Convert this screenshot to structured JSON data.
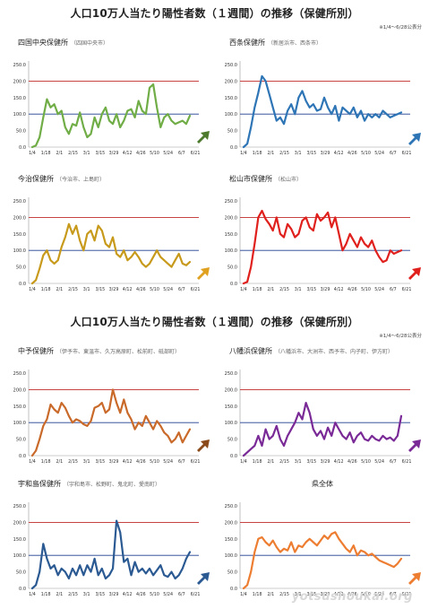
{
  "header1": {
    "title": "人口10万人当たり陽性者数（１週間）の推移（保健所別）",
    "note": "※1/4～6/28公表分"
  },
  "header2": {
    "title": "人口10万人当たり陽性者数（１週間）の推移（保健所別）",
    "note": "※1/4～6/28公表分"
  },
  "watermark": "yotsushoukai.org",
  "colors": {
    "red_line": "#c0282a",
    "blue_line": "#1f3f8f",
    "axis": "#999999"
  },
  "chart_data": [
    {
      "type": "line",
      "title": "四国中央保健所",
      "subtitle": "（四国中央市）",
      "color": "#70ad47",
      "arrow": "up",
      "arrow_color": "#4e7a2e",
      "x_ticks": [
        "1/4",
        "1/18",
        "2/1",
        "2/15",
        "3/1",
        "3/15",
        "3/29",
        "4/12",
        "4/26",
        "5/10",
        "5/24",
        "6/7",
        "6/21"
      ],
      "y_ticks": [
        0,
        50,
        100,
        150,
        200,
        250
      ],
      "ylim": [
        0,
        250
      ],
      "ref_lines": [
        {
          "y": 200,
          "color": "#c0282a"
        },
        {
          "y": 100,
          "color": "#1f3f8f"
        }
      ],
      "values": [
        0,
        5,
        30,
        90,
        145,
        120,
        130,
        100,
        110,
        60,
        40,
        70,
        65,
        105,
        60,
        30,
        40,
        90,
        60,
        100,
        120,
        80,
        70,
        100,
        60,
        80,
        110,
        115,
        90,
        140,
        110,
        100,
        180,
        190,
        120,
        60,
        90,
        100,
        80,
        70,
        75,
        80,
        70,
        95
      ]
    },
    {
      "type": "line",
      "title": "西条保健所",
      "subtitle": "（新居浜市、西条市）",
      "color": "#2e75b6",
      "arrow": "down",
      "arrow_color": "#2e75b6",
      "x_ticks": [
        "1/4",
        "1/18",
        "2/1",
        "2/15",
        "3/1",
        "3/15",
        "3/29",
        "4/12",
        "4/26",
        "5/10",
        "5/24",
        "6/7",
        "6/21"
      ],
      "y_ticks": [
        0,
        50,
        100,
        150,
        200,
        250
      ],
      "ylim": [
        0,
        250
      ],
      "ref_lines": [
        {
          "y": 200,
          "color": "#c0282a"
        },
        {
          "y": 100,
          "color": "#1f3f8f"
        }
      ],
      "values": [
        0,
        10,
        60,
        120,
        165,
        215,
        200,
        160,
        120,
        80,
        90,
        70,
        110,
        130,
        100,
        150,
        170,
        140,
        120,
        130,
        110,
        115,
        150,
        120,
        100,
        125,
        80,
        120,
        110,
        100,
        120,
        90,
        110,
        80,
        100,
        90,
        100,
        90,
        110,
        100,
        90,
        95,
        100,
        105
      ]
    },
    {
      "type": "line",
      "title": "今治保健所",
      "subtitle": "（今治市、上島町）",
      "color": "#c79a1c",
      "arrow": "up",
      "arrow_color": "#e0a020",
      "x_ticks": [
        "1/4",
        "1/18",
        "2/1",
        "2/15",
        "3/1",
        "3/15",
        "3/29",
        "4/12",
        "4/26",
        "5/10",
        "5/24",
        "6/7",
        "6/21"
      ],
      "y_ticks": [
        0,
        50,
        100,
        150,
        200,
        250
      ],
      "ylim": [
        0,
        250
      ],
      "ref_lines": [
        {
          "y": 200,
          "color": "#c0282a"
        },
        {
          "y": 100,
          "color": "#1f3f8f"
        }
      ],
      "values": [
        0,
        10,
        45,
        85,
        100,
        70,
        60,
        70,
        110,
        140,
        180,
        150,
        175,
        130,
        100,
        150,
        160,
        130,
        175,
        160,
        120,
        110,
        140,
        90,
        80,
        100,
        70,
        80,
        95,
        80,
        60,
        50,
        60,
        80,
        100,
        80,
        70,
        60,
        50,
        70,
        90,
        60,
        55,
        65
      ]
    },
    {
      "type": "line",
      "title": "松山市保健所",
      "subtitle": "（松山市）",
      "color": "#e0201c",
      "arrow": "up",
      "arrow_color": "#e0201c",
      "x_ticks": [
        "1/4",
        "1/18",
        "2/1",
        "2/15",
        "3/1",
        "3/15",
        "3/29",
        "4/12",
        "4/26",
        "5/10",
        "5/24",
        "6/7",
        "6/21"
      ],
      "y_ticks": [
        0,
        50,
        100,
        150,
        200,
        250
      ],
      "ylim": [
        0,
        250
      ],
      "ref_lines": [
        {
          "y": 200,
          "color": "#c0282a"
        },
        {
          "y": 100,
          "color": "#1f3f8f"
        }
      ],
      "values": [
        0,
        5,
        50,
        120,
        200,
        220,
        195,
        180,
        160,
        200,
        150,
        140,
        180,
        165,
        140,
        150,
        190,
        200,
        170,
        160,
        210,
        190,
        200,
        215,
        170,
        200,
        150,
        100,
        120,
        150,
        130,
        110,
        140,
        120,
        110,
        130,
        100,
        80,
        65,
        70,
        100,
        90,
        95,
        100
      ]
    },
    {
      "type": "line",
      "title": "中予保健所",
      "subtitle": "（伊予市、東温市、久万高原町、松前町、砥部町）",
      "color": "#c96a2a",
      "arrow": "up",
      "arrow_color": "#8a4a1a",
      "x_ticks": [
        "1/4",
        "1/18",
        "2/1",
        "2/15",
        "3/1",
        "3/15",
        "3/29",
        "4/12",
        "4/26",
        "5/10",
        "5/24",
        "6/7",
        "6/21"
      ],
      "y_ticks": [
        0,
        50,
        100,
        150,
        200,
        250
      ],
      "ylim": [
        0,
        250
      ],
      "ref_lines": [
        {
          "y": 200,
          "color": "#c0282a"
        },
        {
          "y": 100,
          "color": "#1f3f8f"
        }
      ],
      "values": [
        0,
        15,
        50,
        90,
        110,
        155,
        140,
        130,
        160,
        145,
        120,
        100,
        110,
        105,
        95,
        90,
        105,
        145,
        150,
        160,
        130,
        140,
        200,
        160,
        130,
        170,
        130,
        110,
        80,
        100,
        90,
        120,
        100,
        80,
        105,
        90,
        70,
        60,
        40,
        50,
        70,
        40,
        60,
        80
      ]
    },
    {
      "type": "line",
      "title": "八幡浜保健所",
      "subtitle": "（八幡浜市、大洲市、西予市、内子町、伊方町）",
      "color": "#7a2a96",
      "arrow": "up",
      "arrow_color": "#7a2a96",
      "x_ticks": [
        "1/4",
        "1/18",
        "2/1",
        "2/15",
        "3/1",
        "3/15",
        "3/29",
        "4/12",
        "4/26",
        "5/10",
        "5/24",
        "6/7",
        "6/21"
      ],
      "y_ticks": [
        0,
        50,
        100,
        150,
        200,
        250
      ],
      "ylim": [
        0,
        250
      ],
      "ref_lines": [
        {
          "y": 200,
          "color": "#c0282a"
        },
        {
          "y": 100,
          "color": "#1f3f8f"
        }
      ],
      "values": [
        0,
        10,
        20,
        30,
        60,
        30,
        80,
        50,
        60,
        90,
        50,
        30,
        60,
        80,
        100,
        130,
        110,
        160,
        130,
        80,
        60,
        75,
        50,
        85,
        60,
        100,
        80,
        60,
        50,
        70,
        40,
        60,
        70,
        50,
        45,
        60,
        50,
        45,
        60,
        50,
        55,
        45,
        60,
        120
      ]
    },
    {
      "type": "line",
      "title": "宇和島保健所",
      "subtitle": "（宇和島市、松野町、鬼北町、愛南町）",
      "color": "#2b5a93",
      "arrow": "up",
      "arrow_color": "#2b5a93",
      "x_ticks": [
        "1/4",
        "1/18",
        "2/1",
        "2/15",
        "3/1",
        "3/15",
        "3/29",
        "4/12",
        "4/26",
        "5/10",
        "5/24",
        "6/7",
        "6/21"
      ],
      "y_ticks": [
        0,
        50,
        100,
        150,
        200,
        250
      ],
      "ylim": [
        0,
        250
      ],
      "ref_lines": [
        {
          "y": 200,
          "color": "#c0282a"
        },
        {
          "y": 100,
          "color": "#1f3f8f"
        }
      ],
      "values": [
        0,
        10,
        50,
        135,
        90,
        60,
        70,
        40,
        60,
        50,
        30,
        60,
        40,
        70,
        40,
        70,
        50,
        90,
        40,
        60,
        30,
        40,
        60,
        205,
        170,
        80,
        90,
        40,
        80,
        50,
        60,
        45,
        60,
        40,
        55,
        70,
        40,
        35,
        50,
        30,
        40,
        60,
        90,
        110
      ]
    },
    {
      "type": "line",
      "title": "県全体",
      "subtitle": "",
      "color": "#ed7d31",
      "arrow": "up",
      "arrow_color": "#ed7d31",
      "x_ticks": [
        "1/4",
        "1/18",
        "2/1",
        "2/15",
        "3/1",
        "3/15",
        "3/29",
        "4/12",
        "4/26",
        "5/10",
        "5/24",
        "6/7",
        "6/21"
      ],
      "y_ticks": [
        0,
        50,
        100,
        150,
        200,
        250
      ],
      "ylim": [
        0,
        250
      ],
      "ref_lines": [
        {
          "y": 200,
          "color": "#c0282a"
        },
        {
          "y": 100,
          "color": "#1f3f8f"
        }
      ],
      "values": [
        0,
        10,
        50,
        110,
        150,
        155,
        140,
        130,
        145,
        125,
        110,
        120,
        115,
        140,
        110,
        130,
        125,
        140,
        150,
        140,
        130,
        145,
        160,
        150,
        165,
        170,
        150,
        135,
        120,
        110,
        130,
        100,
        115,
        110,
        100,
        105,
        95,
        85,
        80,
        75,
        70,
        65,
        75,
        90
      ]
    }
  ]
}
